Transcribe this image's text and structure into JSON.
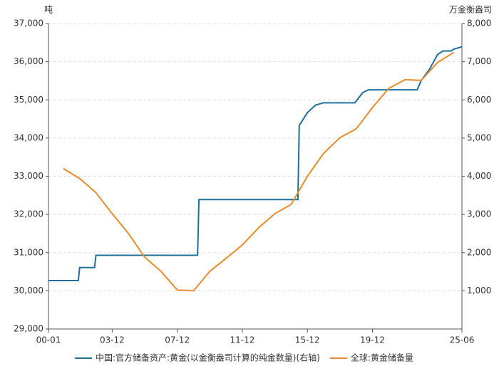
{
  "chart_data": {
    "type": "line",
    "y_unit": "吨",
    "y2_unit": "万金衡盎司",
    "xlim": [
      "00-01",
      "25-06"
    ],
    "xticks": [
      "00-01",
      "03-12",
      "07-12",
      "11-12",
      "15-12",
      "19-12",
      "25-06"
    ],
    "ylim": [
      29000,
      37000
    ],
    "yticks": [
      {
        "value": 29000,
        "label": "29,000"
      },
      {
        "value": 30000,
        "label": "30,000"
      },
      {
        "value": 31000,
        "label": "31,000"
      },
      {
        "value": 32000,
        "label": "32,000"
      },
      {
        "value": 33000,
        "label": "33,000"
      },
      {
        "value": 34000,
        "label": "34,000"
      },
      {
        "value": 35000,
        "label": "35,000"
      },
      {
        "value": 36000,
        "label": "36,000"
      },
      {
        "value": 37000,
        "label": "37,000"
      }
    ],
    "y2lim": [
      0,
      8000
    ],
    "y2ticks": [
      {
        "value": 1000,
        "label": "1,000"
      },
      {
        "value": 2000,
        "label": "2,000"
      },
      {
        "value": 3000,
        "label": "3,000"
      },
      {
        "value": 4000,
        "label": "4,000"
      },
      {
        "value": 5000,
        "label": "5,000"
      },
      {
        "value": 6000,
        "label": "6,000"
      },
      {
        "value": 7000,
        "label": "7,000"
      },
      {
        "value": 8000,
        "label": "8,000"
      }
    ],
    "grid": true,
    "series": [
      {
        "name": "中国:官方储备资产:黄金(以金衡盎司计算的纯金数量)(右轴)",
        "color": "#1f6f99",
        "axis": "y2",
        "x": [
          "00-01",
          "01-11",
          "01-12",
          "02-11",
          "02-12",
          "09-03",
          "09-04",
          "15-05",
          "15-06",
          "15-12",
          "16-06",
          "16-12",
          "18-11",
          "19-05",
          "19-09",
          "22-09",
          "22-12",
          "23-06",
          "23-12",
          "24-04",
          "24-10",
          "24-12",
          "25-06"
        ],
        "values": [
          1267,
          1267,
          1608,
          1608,
          1929,
          1929,
          3389,
          3389,
          5332,
          5666,
          5862,
          5924,
          5924,
          6194,
          6264,
          6264,
          6512,
          6795,
          7187,
          7280,
          7280,
          7329,
          7390
        ]
      },
      {
        "name": "全球:黄金储备量",
        "color": "#e98b2a",
        "x": [
          "00-12",
          "01-12",
          "02-12",
          "03-12",
          "04-12",
          "05-12",
          "06-12",
          "07-12",
          "08-12",
          "09-12",
          "10-12",
          "11-12",
          "12-12",
          "13-12",
          "14-12",
          "15-12",
          "16-12",
          "17-12",
          "18-12",
          "19-12",
          "20-12",
          "21-12",
          "22-12",
          "23-12",
          "24-12"
        ],
        "values": [
          33200,
          32940,
          32570,
          32020,
          31500,
          30880,
          30510,
          30020,
          30000,
          30510,
          30850,
          31200,
          31650,
          32020,
          32260,
          33000,
          33600,
          34010,
          34240,
          34800,
          35300,
          35530,
          35510,
          35980,
          36240
        ]
      }
    ]
  }
}
